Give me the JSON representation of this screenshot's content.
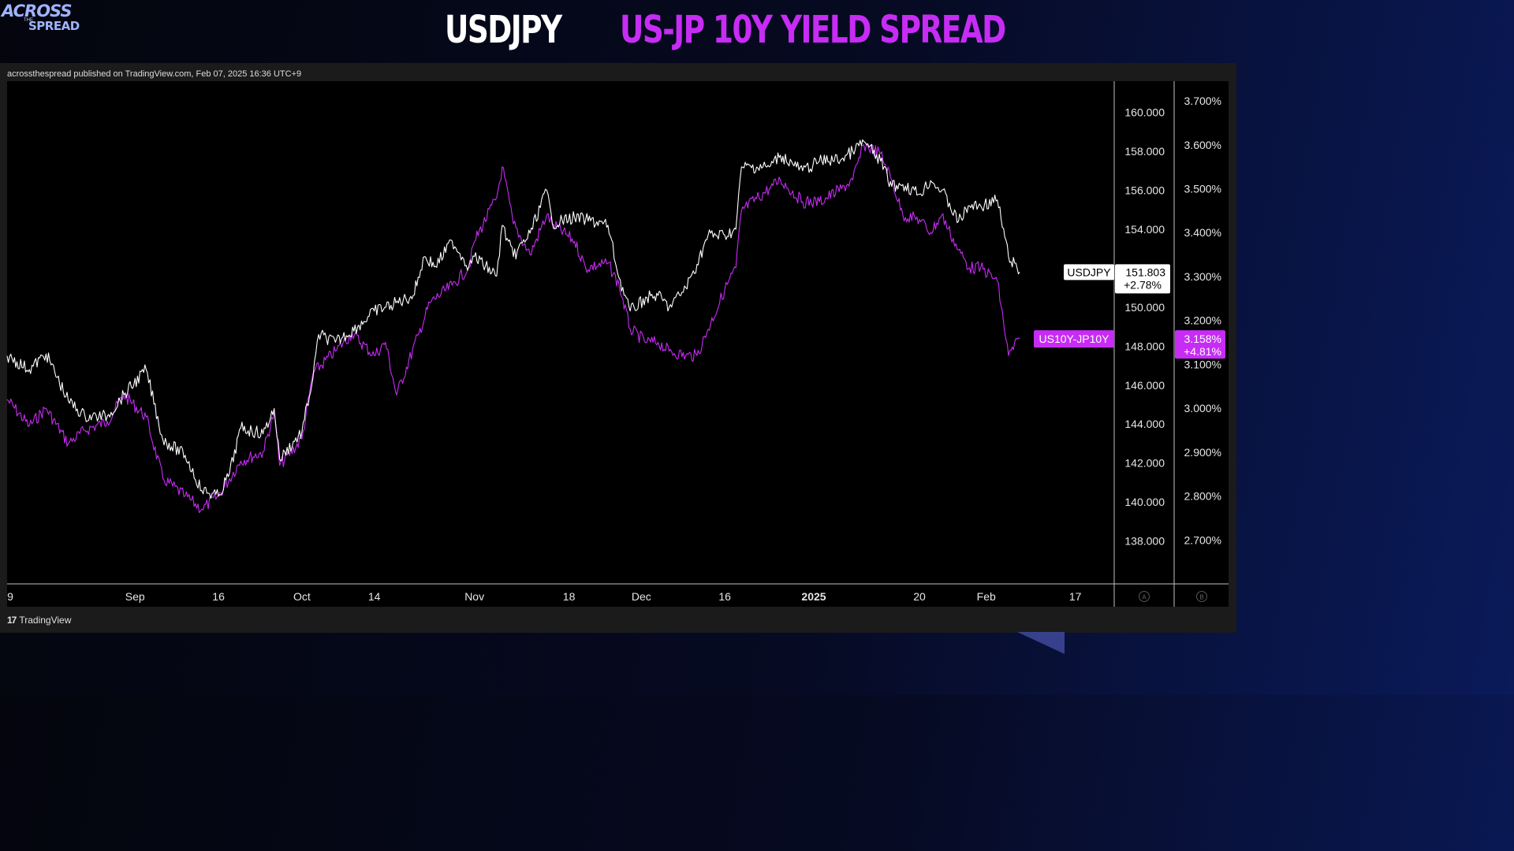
{
  "logo": {
    "line1": "ACROSS",
    "line2": "THE",
    "line3": "SPREAD"
  },
  "title_left": "USDJPY",
  "title_right": "US-JP 10Y YIELD SPREAD",
  "published": "acrossthespread published on TradingView.com, Feb 07, 2025 16:36 UTC+9",
  "brand": "TradingView",
  "colors": {
    "usdjpy": "#ffffff",
    "spread": "#c72cf5",
    "background": "#000000"
  },
  "chart_data": {
    "type": "line",
    "x_ticks": [
      {
        "label": "9",
        "date": "2024-08-09"
      },
      {
        "label": "Sep",
        "date": "2024-09-01"
      },
      {
        "label": "16",
        "date": "2024-09-16"
      },
      {
        "label": "Oct",
        "date": "2024-10-01"
      },
      {
        "label": "14",
        "date": "2024-10-14"
      },
      {
        "label": "Nov",
        "date": "2024-11-01"
      },
      {
        "label": "18",
        "date": "2024-11-18"
      },
      {
        "label": "Dec",
        "date": "2024-12-01"
      },
      {
        "label": "16",
        "date": "2024-12-16"
      },
      {
        "label": "2025",
        "date": "2025-01-01",
        "bold": true
      },
      {
        "label": "20",
        "date": "2025-01-20"
      },
      {
        "label": "Feb",
        "date": "2025-02-01"
      },
      {
        "label": "17",
        "date": "2025-02-17"
      }
    ],
    "xlim": [
      "2024-08-09",
      "2025-02-24"
    ],
    "axis_a": {
      "ylim": [
        135.8,
        161.6
      ],
      "ticks": [
        "138.000",
        "140.000",
        "142.000",
        "144.000",
        "146.000",
        "148.000",
        "150.000",
        "152.000",
        "154.000",
        "156.000",
        "158.000",
        "160.000"
      ],
      "button": "A"
    },
    "axis_b": {
      "ylim": [
        2.6,
        3.745
      ],
      "ticks": [
        "2.700%",
        "2.800%",
        "2.900%",
        "3.000%",
        "3.100%",
        "3.200%",
        "3.300%",
        "3.400%",
        "3.500%",
        "3.600%",
        "3.700%"
      ],
      "button": "B"
    },
    "series": [
      {
        "name": "USDJPY",
        "axis": "A",
        "color": "#ffffff",
        "last_value": "151.803",
        "change": "+2.78%",
        "points": [
          [
            "2024-08-09",
            147.5
          ],
          [
            "2024-08-13",
            146.8
          ],
          [
            "2024-08-16",
            147.6
          ],
          [
            "2024-08-20",
            145.2
          ],
          [
            "2024-08-23",
            144.4
          ],
          [
            "2024-08-27",
            144.4
          ],
          [
            "2024-08-30",
            145.5
          ],
          [
            "2024-09-03",
            146.8
          ],
          [
            "2024-09-06",
            143.2
          ],
          [
            "2024-09-10",
            142.4
          ],
          [
            "2024-09-13",
            140.6
          ],
          [
            "2024-09-16",
            140.3
          ],
          [
            "2024-09-18",
            141.5
          ],
          [
            "2024-09-20",
            143.8
          ],
          [
            "2024-09-24",
            143.5
          ],
          [
            "2024-09-26",
            144.8
          ],
          [
            "2024-09-27",
            142.2
          ],
          [
            "2024-10-01",
            143.6
          ],
          [
            "2024-10-03",
            146.4
          ],
          [
            "2024-10-04",
            148.6
          ],
          [
            "2024-10-07",
            148.2
          ],
          [
            "2024-10-11",
            149.0
          ],
          [
            "2024-10-14",
            149.8
          ],
          [
            "2024-10-17",
            150.1
          ],
          [
            "2024-10-21",
            150.6
          ],
          [
            "2024-10-23",
            152.6
          ],
          [
            "2024-10-25",
            152.1
          ],
          [
            "2024-10-28",
            153.4
          ],
          [
            "2024-10-31",
            152.1
          ],
          [
            "2024-11-01",
            152.6
          ],
          [
            "2024-11-05",
            151.6
          ],
          [
            "2024-11-06",
            154.2
          ],
          [
            "2024-11-08",
            152.6
          ],
          [
            "2024-11-11",
            153.8
          ],
          [
            "2024-11-14",
            156.0
          ],
          [
            "2024-11-15",
            154.3
          ],
          [
            "2024-11-19",
            154.6
          ],
          [
            "2024-11-21",
            154.5
          ],
          [
            "2024-11-25",
            154.2
          ],
          [
            "2024-11-27",
            151.5
          ],
          [
            "2024-11-29",
            149.8
          ],
          [
            "2024-12-02",
            150.5
          ],
          [
            "2024-12-04",
            150.6
          ],
          [
            "2024-12-06",
            150.0
          ],
          [
            "2024-12-09",
            151.0
          ],
          [
            "2024-12-11",
            152.2
          ],
          [
            "2024-12-13",
            153.7
          ],
          [
            "2024-12-16",
            153.7
          ],
          [
            "2024-12-18",
            154.0
          ],
          [
            "2024-12-19",
            157.2
          ],
          [
            "2024-12-24",
            157.2
          ],
          [
            "2024-12-26",
            157.8
          ],
          [
            "2024-12-30",
            157.0
          ],
          [
            "2025-01-02",
            157.5
          ],
          [
            "2025-01-06",
            157.6
          ],
          [
            "2025-01-08",
            158.0
          ],
          [
            "2025-01-10",
            158.5
          ],
          [
            "2025-01-13",
            157.5
          ],
          [
            "2025-01-15",
            156.2
          ],
          [
            "2025-01-17",
            156.3
          ],
          [
            "2025-01-20",
            155.8
          ],
          [
            "2025-01-22",
            156.5
          ],
          [
            "2025-01-24",
            156.0
          ],
          [
            "2025-01-27",
            154.4
          ],
          [
            "2025-01-29",
            155.2
          ],
          [
            "2025-01-31",
            155.2
          ],
          [
            "2025-02-03",
            155.5
          ],
          [
            "2025-02-05",
            152.6
          ],
          [
            "2025-02-07",
            151.8
          ]
        ]
      },
      {
        "name": "US10Y-JP10Y",
        "axis": "B",
        "color": "#c72cf5",
        "last_value": "3.158%",
        "change": "+4.81%",
        "points": [
          [
            "2024-08-09",
            3.02
          ],
          [
            "2024-08-13",
            2.96
          ],
          [
            "2024-08-16",
            3.0
          ],
          [
            "2024-08-20",
            2.92
          ],
          [
            "2024-08-23",
            2.95
          ],
          [
            "2024-08-27",
            2.97
          ],
          [
            "2024-08-30",
            3.03
          ],
          [
            "2024-09-03",
            2.98
          ],
          [
            "2024-09-06",
            2.84
          ],
          [
            "2024-09-10",
            2.8
          ],
          [
            "2024-09-13",
            2.77
          ],
          [
            "2024-09-16",
            2.8
          ],
          [
            "2024-09-20",
            2.88
          ],
          [
            "2024-09-24",
            2.9
          ],
          [
            "2024-09-26",
            2.99
          ],
          [
            "2024-09-27",
            2.87
          ],
          [
            "2024-10-01",
            2.93
          ],
          [
            "2024-10-03",
            3.08
          ],
          [
            "2024-10-07",
            3.13
          ],
          [
            "2024-10-10",
            3.17
          ],
          [
            "2024-10-14",
            3.12
          ],
          [
            "2024-10-16",
            3.15
          ],
          [
            "2024-10-18",
            3.03
          ],
          [
            "2024-10-22",
            3.17
          ],
          [
            "2024-10-24",
            3.24
          ],
          [
            "2024-10-28",
            3.28
          ],
          [
            "2024-10-31",
            3.32
          ],
          [
            "2024-11-01",
            3.38
          ],
          [
            "2024-11-05",
            3.48
          ],
          [
            "2024-11-06",
            3.55
          ],
          [
            "2024-11-08",
            3.42
          ],
          [
            "2024-11-11",
            3.35
          ],
          [
            "2024-11-14",
            3.44
          ],
          [
            "2024-11-15",
            3.42
          ],
          [
            "2024-11-19",
            3.38
          ],
          [
            "2024-11-21",
            3.32
          ],
          [
            "2024-11-25",
            3.33
          ],
          [
            "2024-11-27",
            3.28
          ],
          [
            "2024-11-29",
            3.18
          ],
          [
            "2024-12-02",
            3.15
          ],
          [
            "2024-12-04",
            3.15
          ],
          [
            "2024-12-06",
            3.13
          ],
          [
            "2024-12-09",
            3.12
          ],
          [
            "2024-12-11",
            3.12
          ],
          [
            "2024-12-13",
            3.18
          ],
          [
            "2024-12-16",
            3.27
          ],
          [
            "2024-12-18",
            3.32
          ],
          [
            "2024-12-19",
            3.45
          ],
          [
            "2024-12-24",
            3.5
          ],
          [
            "2024-12-26",
            3.52
          ],
          [
            "2024-12-30",
            3.47
          ],
          [
            "2025-01-02",
            3.47
          ],
          [
            "2025-01-06",
            3.5
          ],
          [
            "2025-01-08",
            3.52
          ],
          [
            "2025-01-10",
            3.6
          ],
          [
            "2025-01-13",
            3.58
          ],
          [
            "2025-01-15",
            3.52
          ],
          [
            "2025-01-17",
            3.44
          ],
          [
            "2025-01-20",
            3.43
          ],
          [
            "2025-01-22",
            3.4
          ],
          [
            "2025-01-24",
            3.44
          ],
          [
            "2025-01-27",
            3.36
          ],
          [
            "2025-01-29",
            3.32
          ],
          [
            "2025-01-31",
            3.32
          ],
          [
            "2025-02-03",
            3.29
          ],
          [
            "2025-02-05",
            3.12
          ],
          [
            "2025-02-07",
            3.158
          ]
        ]
      }
    ]
  }
}
